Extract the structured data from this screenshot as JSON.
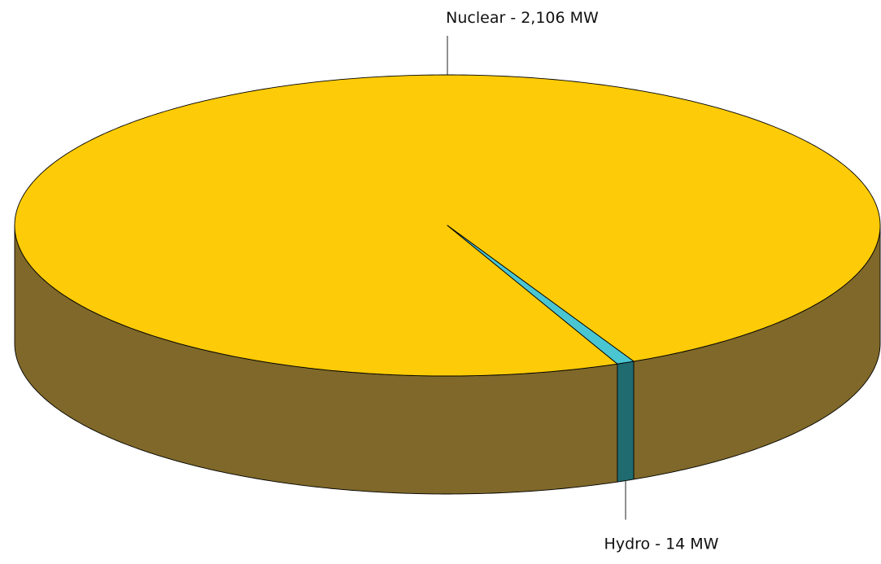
{
  "chart_data": {
    "type": "pie",
    "style": "3d",
    "legend": "none",
    "slices": [
      {
        "name": "Nuclear",
        "value": 2106,
        "label": "Nuclear - 2,106 MW",
        "color": "#fdcb07",
        "side_color": "#7f6829"
      },
      {
        "name": "Hydro",
        "value": 14,
        "label": "Hydro - 14 MW",
        "color": "#4ac6d2",
        "side_color": "#1f6b70"
      }
    ]
  }
}
